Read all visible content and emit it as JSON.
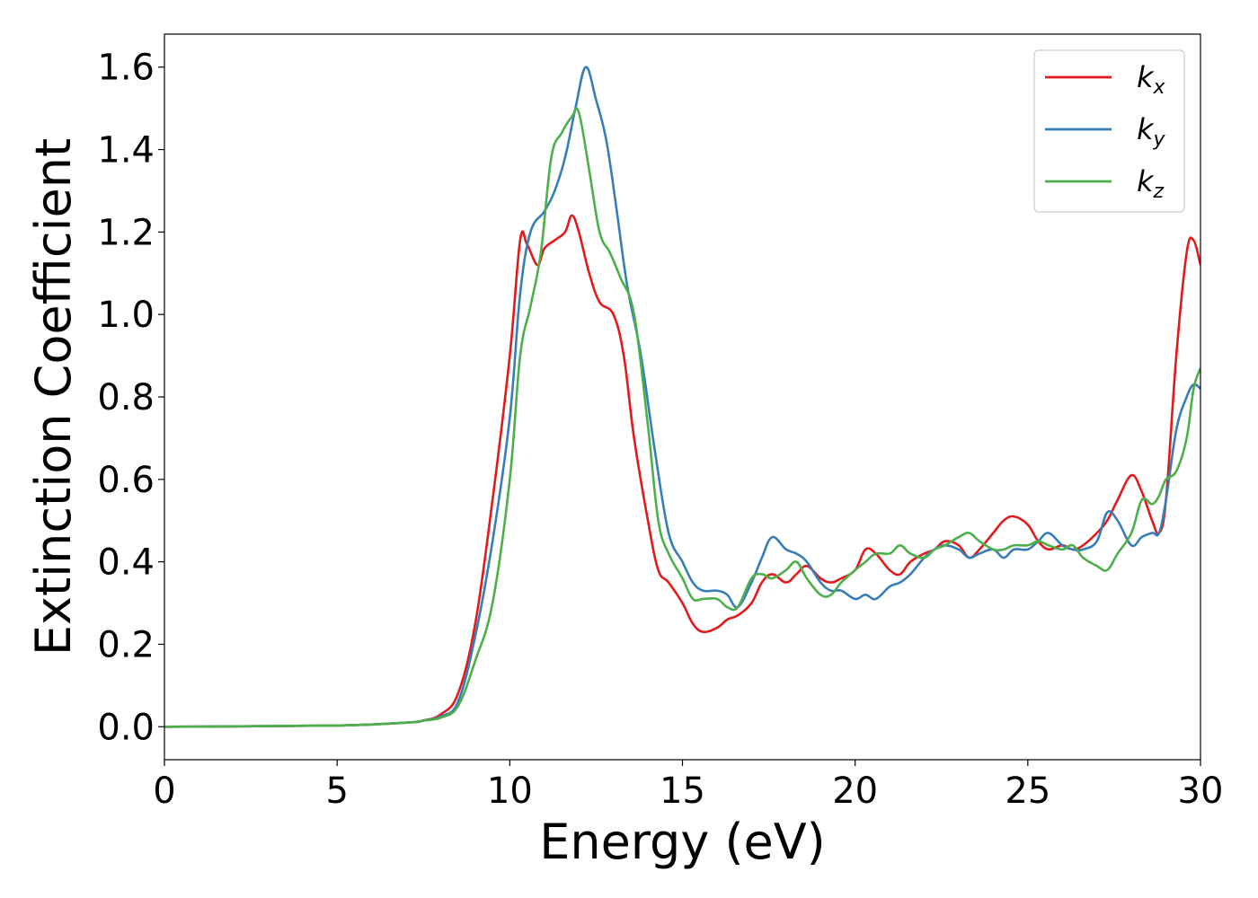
{
  "chart_data": {
    "type": "line",
    "title": "",
    "xlabel": "Energy (eV)",
    "ylabel": "Extinction Coefficient",
    "xlim": [
      0,
      30
    ],
    "ylim": [
      -0.08,
      1.68
    ],
    "xticks": [
      0,
      5,
      10,
      15,
      20,
      25,
      30
    ],
    "xtick_labels": [
      "0",
      "5",
      "10",
      "15",
      "20",
      "25",
      "30"
    ],
    "yticks": [
      0.0,
      0.2,
      0.4,
      0.6,
      0.8,
      1.0,
      1.2,
      1.4,
      1.6
    ],
    "ytick_labels": [
      "0.0",
      "0.2",
      "0.4",
      "0.6",
      "0.8",
      "1.0",
      "1.2",
      "1.4",
      "1.6"
    ],
    "grid": false,
    "legend_position": "top-right",
    "series": [
      {
        "name": "k_x",
        "label_base": "k",
        "label_sub": "x",
        "color": "#e31a1c",
        "x": [
          0,
          5,
          7,
          7.5,
          8,
          8.5,
          9,
          9.5,
          10,
          10.3,
          10.5,
          10.8,
          11,
          11.3,
          11.6,
          11.8,
          12,
          12.3,
          12.6,
          13,
          13.3,
          13.6,
          14,
          14.3,
          14.6,
          15,
          15.3,
          15.6,
          16,
          16.3,
          16.6,
          17,
          17.3,
          17.6,
          18,
          18.3,
          18.6,
          19,
          19.3,
          19.6,
          20,
          20.3,
          20.6,
          21,
          21.3,
          21.6,
          22,
          22.3,
          22.6,
          23,
          23.3,
          23.6,
          24,
          24.3,
          24.6,
          25,
          25.3,
          25.6,
          26,
          26.3,
          26.6,
          27,
          27.3,
          27.6,
          28,
          28.3,
          28.6,
          28.8,
          29,
          29.3,
          29.6,
          29.8,
          30
        ],
        "y": [
          0.0,
          0.003,
          0.01,
          0.015,
          0.03,
          0.08,
          0.25,
          0.55,
          0.9,
          1.18,
          1.17,
          1.12,
          1.16,
          1.18,
          1.2,
          1.24,
          1.2,
          1.1,
          1.03,
          1.0,
          0.9,
          0.7,
          0.5,
          0.38,
          0.35,
          0.3,
          0.25,
          0.23,
          0.24,
          0.26,
          0.27,
          0.3,
          0.35,
          0.37,
          0.35,
          0.37,
          0.39,
          0.36,
          0.35,
          0.36,
          0.38,
          0.43,
          0.42,
          0.38,
          0.37,
          0.4,
          0.42,
          0.43,
          0.45,
          0.44,
          0.41,
          0.43,
          0.47,
          0.5,
          0.51,
          0.49,
          0.45,
          0.43,
          0.44,
          0.43,
          0.44,
          0.47,
          0.5,
          0.55,
          0.61,
          0.57,
          0.5,
          0.47,
          0.55,
          0.9,
          1.15,
          1.18,
          1.12
        ]
      },
      {
        "name": "k_y",
        "label_base": "k",
        "label_sub": "y",
        "color": "#377eb8",
        "x": [
          0,
          5,
          7,
          7.5,
          8,
          8.5,
          9,
          9.5,
          10,
          10.3,
          10.6,
          11,
          11.3,
          11.6,
          11.9,
          12.2,
          12.5,
          12.8,
          13.1,
          13.4,
          13.8,
          14.2,
          14.6,
          15,
          15.3,
          15.6,
          16,
          16.3,
          16.6,
          17,
          17.3,
          17.6,
          18,
          18.3,
          18.6,
          19,
          19.3,
          19.6,
          20,
          20.3,
          20.6,
          21,
          21.3,
          21.6,
          22,
          22.3,
          22.6,
          23,
          23.3,
          23.6,
          24,
          24.3,
          24.6,
          25,
          25.3,
          25.6,
          26,
          26.3,
          26.6,
          27,
          27.3,
          27.6,
          28,
          28.3,
          28.6,
          28.8,
          29,
          29.3,
          29.6,
          29.8,
          30
        ],
        "y": [
          0.0,
          0.003,
          0.01,
          0.015,
          0.025,
          0.06,
          0.22,
          0.45,
          0.75,
          1.05,
          1.2,
          1.25,
          1.3,
          1.38,
          1.5,
          1.6,
          1.52,
          1.42,
          1.25,
          1.07,
          0.9,
          0.67,
          0.47,
          0.4,
          0.35,
          0.33,
          0.33,
          0.32,
          0.29,
          0.35,
          0.41,
          0.46,
          0.43,
          0.42,
          0.4,
          0.35,
          0.33,
          0.33,
          0.31,
          0.32,
          0.31,
          0.34,
          0.35,
          0.37,
          0.41,
          0.43,
          0.44,
          0.43,
          0.41,
          0.42,
          0.43,
          0.41,
          0.43,
          0.43,
          0.45,
          0.47,
          0.44,
          0.43,
          0.43,
          0.45,
          0.52,
          0.5,
          0.44,
          0.46,
          0.47,
          0.47,
          0.55,
          0.72,
          0.8,
          0.83,
          0.82
        ]
      },
      {
        "name": "k_z",
        "label_base": "k",
        "label_sub": "z",
        "color": "#4daf4a",
        "x": [
          0,
          5,
          7,
          7.5,
          8,
          8.5,
          9,
          9.5,
          10,
          10.3,
          10.6,
          10.9,
          11.2,
          11.5,
          11.8,
          12,
          12.3,
          12.6,
          12.9,
          13.2,
          13.6,
          14,
          14.3,
          14.6,
          15,
          15.3,
          15.6,
          16,
          16.3,
          16.6,
          17,
          17.3,
          17.6,
          18,
          18.3,
          18.6,
          19,
          19.3,
          19.6,
          20,
          20.3,
          20.6,
          21,
          21.3,
          21.6,
          22,
          22.3,
          22.6,
          23,
          23.3,
          23.6,
          24,
          24.3,
          24.6,
          25,
          25.3,
          25.6,
          26,
          26.3,
          26.6,
          27,
          27.3,
          27.6,
          28,
          28.3,
          28.6,
          28.8,
          29,
          29.3,
          29.6,
          29.8,
          30
        ],
        "y": [
          0.0,
          0.003,
          0.01,
          0.015,
          0.022,
          0.05,
          0.16,
          0.3,
          0.6,
          0.9,
          1.02,
          1.15,
          1.38,
          1.44,
          1.48,
          1.49,
          1.35,
          1.2,
          1.15,
          1.09,
          1.0,
          0.73,
          0.5,
          0.42,
          0.36,
          0.31,
          0.31,
          0.31,
          0.29,
          0.29,
          0.36,
          0.37,
          0.36,
          0.38,
          0.4,
          0.36,
          0.32,
          0.32,
          0.35,
          0.38,
          0.4,
          0.42,
          0.42,
          0.44,
          0.42,
          0.41,
          0.43,
          0.44,
          0.46,
          0.47,
          0.45,
          0.43,
          0.43,
          0.44,
          0.44,
          0.45,
          0.44,
          0.43,
          0.44,
          0.41,
          0.39,
          0.38,
          0.42,
          0.47,
          0.55,
          0.54,
          0.56,
          0.6,
          0.62,
          0.7,
          0.82,
          0.87
        ]
      }
    ]
  }
}
